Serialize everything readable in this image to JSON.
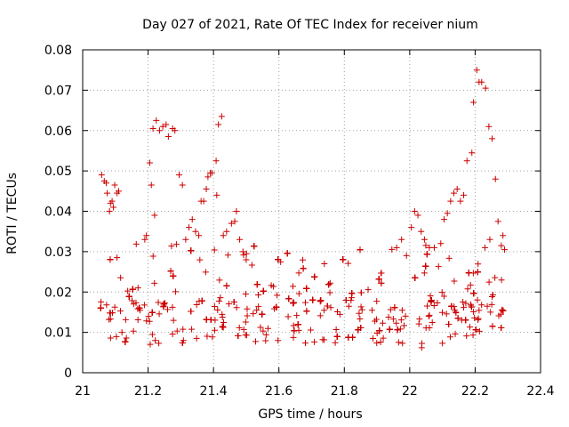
{
  "chart_data": {
    "type": "scatter",
    "title": "Day 027 of 2021, Rate Of TEC Index for receiver nium",
    "xlabel": "GPS time / hours",
    "ylabel": "ROTI / TECUs",
    "xlim": [
      21,
      22.4
    ],
    "ylim": [
      0,
      0.08
    ],
    "x_ticks": [
      21,
      21.2,
      21.4,
      21.6,
      21.8,
      22,
      22.2,
      22.4
    ],
    "x_tick_labels": [
      "21",
      "21.2",
      "21.4",
      "21.6",
      "21.8",
      "22",
      "22.2",
      "22.4"
    ],
    "y_ticks": [
      0,
      0.01,
      0.02,
      0.03,
      0.04,
      0.05,
      0.06,
      0.07,
      0.08
    ],
    "y_tick_labels": [
      "0",
      "0.01",
      "0.02",
      "0.03",
      "0.04",
      "0.05",
      "0.06",
      "0.07",
      "0.08"
    ],
    "grid": true,
    "marker": "+",
    "series": [
      {
        "color": "#cc0000",
        "points": [
          [
            21.058,
            0.049
          ],
          [
            21.066,
            0.0475
          ],
          [
            21.072,
            0.047
          ],
          [
            21.075,
            0.0445
          ],
          [
            21.082,
            0.04
          ],
          [
            21.085,
            0.042
          ],
          [
            21.09,
            0.0425
          ],
          [
            21.094,
            0.041
          ],
          [
            21.098,
            0.0465
          ],
          [
            21.105,
            0.0445
          ],
          [
            21.11,
            0.045
          ],
          [
            21.105,
            0.0285
          ],
          [
            21.19,
            0.033
          ],
          [
            21.195,
            0.034
          ],
          [
            21.205,
            0.052
          ],
          [
            21.21,
            0.0465
          ],
          [
            21.22,
            0.039
          ],
          [
            21.215,
            0.0605
          ],
          [
            21.225,
            0.0625
          ],
          [
            21.235,
            0.06
          ],
          [
            21.245,
            0.061
          ],
          [
            21.255,
            0.0615
          ],
          [
            21.262,
            0.0585
          ],
          [
            21.275,
            0.0605
          ],
          [
            21.282,
            0.06
          ],
          [
            21.295,
            0.049
          ],
          [
            21.305,
            0.0465
          ],
          [
            21.315,
            0.033
          ],
          [
            21.325,
            0.036
          ],
          [
            21.335,
            0.038
          ],
          [
            21.345,
            0.035
          ],
          [
            21.355,
            0.034
          ],
          [
            21.362,
            0.0425
          ],
          [
            21.37,
            0.0425
          ],
          [
            21.378,
            0.0455
          ],
          [
            21.383,
            0.0485
          ],
          [
            21.39,
            0.0495
          ],
          [
            21.395,
            0.0495
          ],
          [
            21.408,
            0.0525
          ],
          [
            21.415,
            0.0615
          ],
          [
            21.425,
            0.0635
          ],
          [
            21.41,
            0.044
          ],
          [
            21.43,
            0.034
          ],
          [
            21.44,
            0.035
          ],
          [
            21.455,
            0.037
          ],
          [
            21.465,
            0.0375
          ],
          [
            21.47,
            0.04
          ],
          [
            21.48,
            0.033
          ],
          [
            21.49,
            0.03
          ],
          [
            21.5,
            0.028
          ],
          [
            21.96,
            0.031
          ],
          [
            21.975,
            0.033
          ],
          [
            21.99,
            0.029
          ],
          [
            22.005,
            0.036
          ],
          [
            22.015,
            0.04
          ],
          [
            22.025,
            0.039
          ],
          [
            22.035,
            0.035
          ],
          [
            22.045,
            0.033
          ],
          [
            22.06,
            0.031
          ],
          [
            22.075,
            0.031
          ],
          [
            22.095,
            0.032
          ],
          [
            22.105,
            0.038
          ],
          [
            22.115,
            0.0395
          ],
          [
            22.125,
            0.0425
          ],
          [
            22.135,
            0.0445
          ],
          [
            22.145,
            0.0455
          ],
          [
            22.155,
            0.0425
          ],
          [
            22.165,
            0.044
          ],
          [
            22.175,
            0.0525
          ],
          [
            22.19,
            0.0545
          ],
          [
            22.195,
            0.067
          ],
          [
            22.205,
            0.075
          ],
          [
            22.212,
            0.072
          ],
          [
            22.22,
            0.072
          ],
          [
            22.232,
            0.0705
          ],
          [
            22.242,
            0.061
          ],
          [
            22.252,
            0.058
          ],
          [
            22.262,
            0.048
          ],
          [
            22.27,
            0.0375
          ],
          [
            22.28,
            0.0315
          ],
          [
            22.285,
            0.034
          ],
          [
            22.29,
            0.0305
          ],
          [
            22.23,
            0.031
          ],
          [
            22.245,
            0.033
          ]
        ]
      }
    ]
  }
}
